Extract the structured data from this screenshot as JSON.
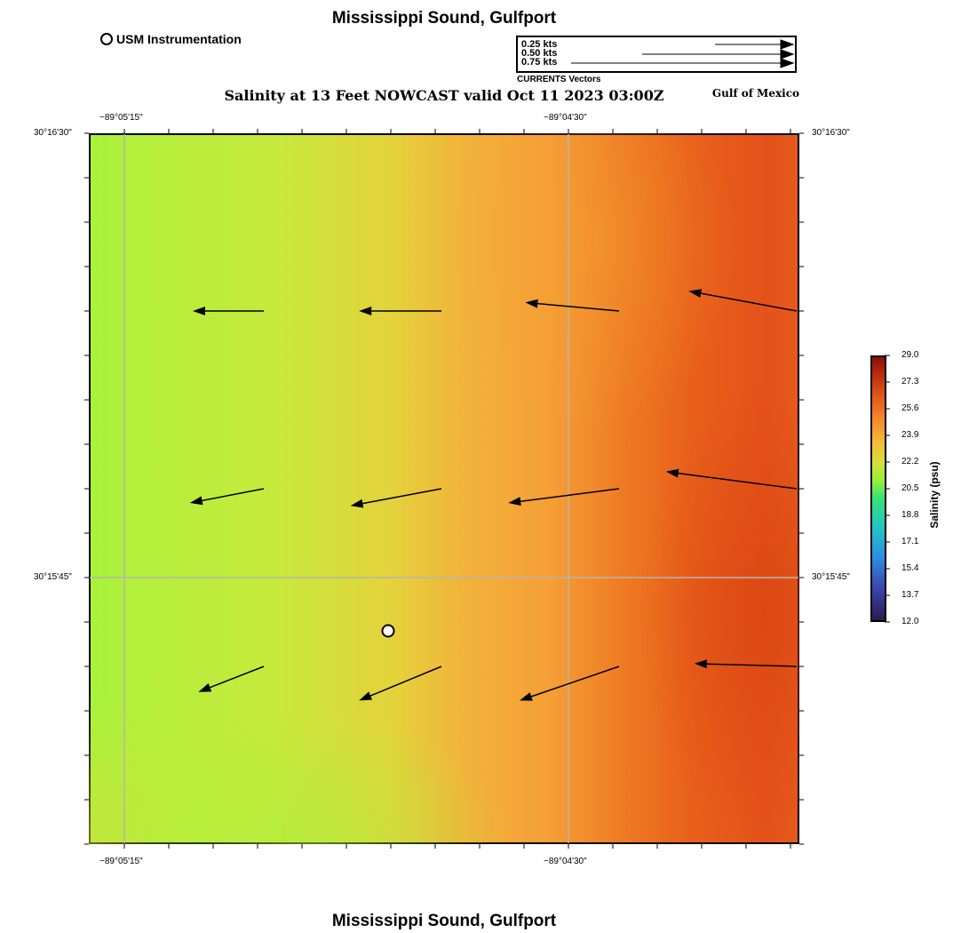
{
  "title": "Mississippi Sound, Gulfport",
  "subtitle": "Salinity at 13 Feet NOWCAST valid Oct 11 2023 03:00Z",
  "region_label": "Gulf of Mexico",
  "legend": {
    "usm_label": "USM Instrumentation",
    "vector_scale": [
      {
        "label": "0.25 kts",
        "speed_kts": 0.25
      },
      {
        "label": "0.50 kts",
        "speed_kts": 0.5
      },
      {
        "label": "0.75 kts",
        "speed_kts": 0.75
      }
    ],
    "vector_caption": "CURRENTS Vectors"
  },
  "map": {
    "lon_labels": [
      "−89°05'15\"",
      "−89°04'30\""
    ],
    "lat_labels": [
      "30°16'30\"",
      "30°15'45\""
    ],
    "station_name": "USM Instrumentation",
    "colors": {
      "grid": "#b5b5b5",
      "arrow": "#000000"
    },
    "current_vectors": [
      {
        "u_kts": -0.25,
        "v_kts": 0.0
      },
      {
        "u_kts": -0.29,
        "v_kts": 0.0
      },
      {
        "u_kts": -0.33,
        "v_kts": 0.03
      },
      {
        "u_kts": -0.38,
        "v_kts": 0.07
      },
      {
        "u_kts": -0.26,
        "v_kts": -0.05
      },
      {
        "u_kts": -0.32,
        "v_kts": -0.06
      },
      {
        "u_kts": -0.39,
        "v_kts": -0.05
      },
      {
        "u_kts": -0.46,
        "v_kts": 0.06
      },
      {
        "u_kts": -0.23,
        "v_kts": -0.09
      },
      {
        "u_kts": -0.29,
        "v_kts": -0.12
      },
      {
        "u_kts": -0.35,
        "v_kts": -0.12
      },
      {
        "u_kts": -0.36,
        "v_kts": 0.01
      }
    ]
  },
  "colorbar": {
    "title": "Salinity (psu)",
    "min": 12.0,
    "max": 29.0,
    "tick_labels": [
      "12.0",
      "13.7",
      "15.4",
      "17.1",
      "18.8",
      "20.5",
      "22.2",
      "23.9",
      "25.6",
      "27.3",
      "29.0"
    ]
  }
}
